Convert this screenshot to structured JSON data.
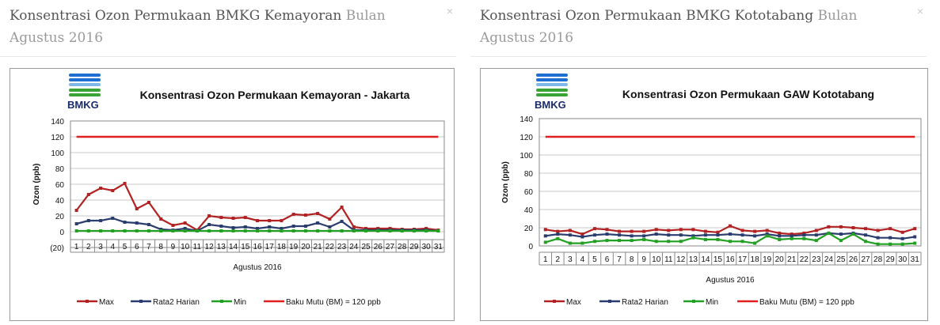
{
  "panels": [
    {
      "title_main": "Konsentrasi Ozon Permukaan BMKG Kemayoran",
      "title_period": "Bulan Agustus 2016",
      "close_label": "×"
    },
    {
      "title_main": "Konsentrasi Ozon Permukaan BMKG Kototabang",
      "title_period": "Bulan Agustus 2016",
      "close_label": "×"
    }
  ],
  "logo_text": "BMKG",
  "colors": {
    "max": "#b22222",
    "rata": "#2b3d6e",
    "min": "#22a022",
    "bm": "#e02020",
    "grid": "#c8c8c8"
  },
  "chart_data": [
    {
      "type": "line",
      "title": "Konsentrasi Ozon Permukaan Kemayoran - Jakarta",
      "xlabel": "Agustus  2016",
      "ylabel": "Ozon  (ppb)",
      "ylim": [
        -20,
        140
      ],
      "yticks": [
        "140",
        "120",
        "100",
        "80",
        "60",
        "40",
        "20",
        "0",
        "(20)"
      ],
      "categories": [
        "1",
        "2",
        "3",
        "4",
        "5",
        "6",
        "7",
        "8",
        "9",
        "10",
        "11",
        "12",
        "13",
        "14",
        "15",
        "16",
        "17",
        "18",
        "19",
        "20",
        "21",
        "22",
        "23",
        "24",
        "25",
        "26",
        "27",
        "28",
        "29",
        "30",
        "31"
      ],
      "grid": true,
      "legend_position": "bottom",
      "series": [
        {
          "name": "Max",
          "values": [
            27,
            47,
            55,
            52,
            61,
            29,
            37,
            16,
            8,
            11,
            2,
            20,
            18,
            17,
            18,
            14,
            14,
            14,
            22,
            21,
            23,
            16,
            31,
            6,
            4,
            4,
            4,
            3,
            3,
            4,
            2
          ]
        },
        {
          "name": "Rata2 Harian",
          "values": [
            10,
            14,
            14,
            17,
            12,
            11,
            9,
            3,
            2,
            4,
            1,
            9,
            7,
            5,
            6,
            4,
            6,
            4,
            7,
            7,
            11,
            6,
            13,
            2,
            2,
            2,
            2,
            2,
            2,
            2,
            1
          ]
        },
        {
          "name": "Min",
          "values": [
            1,
            1,
            1,
            1,
            1,
            1,
            1,
            1,
            1,
            1,
            1,
            1,
            1,
            1,
            1,
            1,
            1,
            1,
            1,
            1,
            1,
            1,
            1,
            1,
            1,
            1,
            1,
            1,
            1,
            1,
            1
          ]
        },
        {
          "name": "Baku Mutu (BM) = 120 ppb",
          "values": [
            120,
            120,
            120,
            120,
            120,
            120,
            120,
            120,
            120,
            120,
            120,
            120,
            120,
            120,
            120,
            120,
            120,
            120,
            120,
            120,
            120,
            120,
            120,
            120,
            120,
            120,
            120,
            120,
            120,
            120,
            120
          ]
        }
      ]
    },
    {
      "type": "line",
      "title": "Konsentrasi Ozon Permukaan GAW Kototabang",
      "xlabel": "Agustus  2016",
      "ylabel": "Ozon  (ppb)",
      "ylim": [
        0,
        140
      ],
      "yticks": [
        "140",
        "120",
        "100",
        "80",
        "60",
        "40",
        "20",
        "0"
      ],
      "categories": [
        "1",
        "2",
        "3",
        "4",
        "5",
        "6",
        "7",
        "8",
        "9",
        "10",
        "11",
        "12",
        "13",
        "14",
        "15",
        "16",
        "17",
        "18",
        "19",
        "20",
        "21",
        "22",
        "23",
        "24",
        "25",
        "26",
        "27",
        "28",
        "29",
        "30",
        "31"
      ],
      "grid": true,
      "legend_position": "bottom",
      "series": [
        {
          "name": "Max",
          "values": [
            18,
            16,
            17,
            13,
            19,
            18,
            16,
            16,
            16,
            18,
            17,
            18,
            18,
            16,
            15,
            22,
            17,
            16,
            17,
            14,
            13,
            14,
            17,
            21,
            21,
            20,
            19,
            17,
            19,
            15,
            19
          ]
        },
        {
          "name": "Rata2 Harian",
          "values": [
            11,
            13,
            12,
            10,
            12,
            13,
            12,
            11,
            11,
            13,
            12,
            12,
            11,
            12,
            12,
            13,
            12,
            11,
            13,
            11,
            11,
            12,
            12,
            14,
            13,
            14,
            12,
            9,
            9,
            8,
            10
          ]
        },
        {
          "name": "Min",
          "values": [
            4,
            8,
            3,
            3,
            5,
            6,
            6,
            6,
            7,
            5,
            5,
            5,
            9,
            7,
            7,
            5,
            5,
            3,
            11,
            7,
            8,
            8,
            6,
            14,
            6,
            13,
            5,
            2,
            2,
            2,
            3
          ]
        },
        {
          "name": "Baku Mutu (BM) = 120 ppb",
          "values": [
            120,
            120,
            120,
            120,
            120,
            120,
            120,
            120,
            120,
            120,
            120,
            120,
            120,
            120,
            120,
            120,
            120,
            120,
            120,
            120,
            120,
            120,
            120,
            120,
            120,
            120,
            120,
            120,
            120,
            120,
            120
          ]
        }
      ]
    }
  ]
}
